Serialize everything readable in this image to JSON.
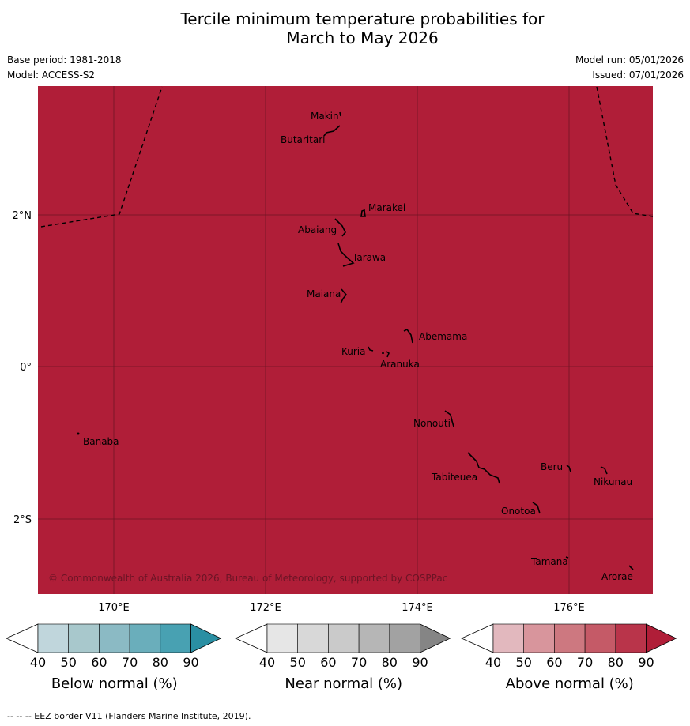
{
  "title": {
    "line1": "Tercile minimum temperature probabilities for",
    "line2": "March to May 2026"
  },
  "meta": {
    "base_period": "Base period: 1981-2018",
    "model": "Model: ACCESS-S2",
    "model_run": "Model run: 05/01/2026",
    "issued": "Issued: 07/01/2026"
  },
  "map": {
    "fill_color": "#b01e38",
    "lon_ticks": [
      "170°E",
      "172°E",
      "174°E",
      "176°E"
    ],
    "lat_ticks": [
      "2°N",
      "0°",
      "2°S"
    ],
    "islands": [
      "Makin",
      "Butaritari",
      "Marakei",
      "Abaiang",
      "Tarawa",
      "Maiana",
      "Abemama",
      "Kuria",
      "Aranuka",
      "Nonouti",
      "Banaba",
      "Tabiteuea",
      "Beru",
      "Nikunau",
      "Onotoa",
      "Tamana",
      "Arorae"
    ],
    "copyright": "© Commonwealth of Australia 2026, Bureau of Meteorology, supported by COSPPac"
  },
  "legend": {
    "ticks": [
      "40",
      "50",
      "60",
      "70",
      "80",
      "90"
    ],
    "below": {
      "title": "Below normal (%)",
      "colors": [
        "#c0d6dc",
        "#a8c8cc",
        "#8bbac4",
        "#6aaebb",
        "#48a1b2",
        "#2a8fa3"
      ]
    },
    "near": {
      "title": "Near normal (%)",
      "colors": [
        "#e6e6e6",
        "#d8d8d8",
        "#cacaca",
        "#b6b6b6",
        "#a2a2a2",
        "#858585"
      ]
    },
    "above": {
      "title": "Above normal (%)",
      "colors": [
        "#e2b8be",
        "#d8959c",
        "#cd7880",
        "#c55a67",
        "#b9344a",
        "#b01e38"
      ]
    }
  },
  "footnote": "--  --  -- EEZ border V11 (Flanders Marine Institute, 2019)."
}
